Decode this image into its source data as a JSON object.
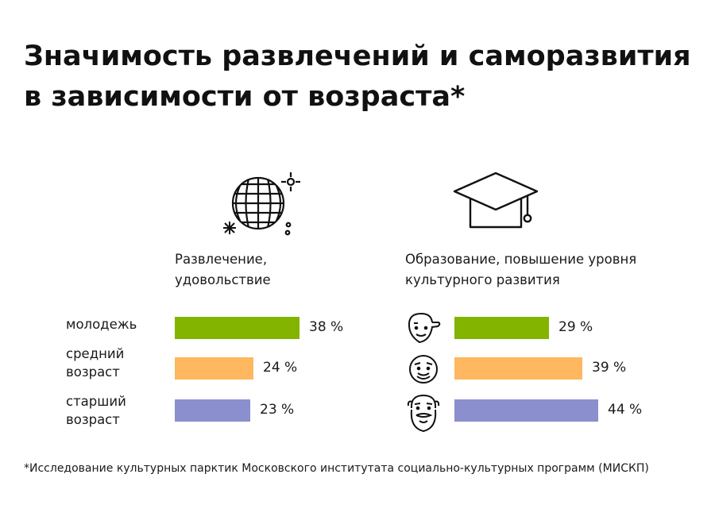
{
  "title": {
    "line1": "Значимость развлечений и саморазвития",
    "line2": "в зависимости от возраста*"
  },
  "footnote": "*Исследование культурных парктик Московского институтата социально-культурных программ (МИСКП)",
  "icons": {
    "left_panel": "disco-ball-icon",
    "right_panel": "graduation-cap-icon",
    "rows": [
      "young-face-cap-icon",
      "middle-aged-face-icon",
      "old-bearded-face-icon"
    ]
  },
  "colors": {
    "young": "#82b400",
    "middle": "#ffb760",
    "senior": "#8b8fce"
  },
  "chart_data": [
    {
      "type": "bar",
      "title_lines": [
        "Развлечение,",
        "удовольствие"
      ],
      "categories": [
        "молодежь",
        "средний возраст",
        "старший возраст"
      ],
      "category_lines": [
        [
          "молодежь"
        ],
        [
          "средний",
          "возраст"
        ],
        [
          "старший",
          "возраст"
        ]
      ],
      "values": [
        38,
        24,
        23
      ],
      "value_labels": [
        "38 %",
        "24 %",
        "23 %"
      ],
      "unit": "%",
      "orientation": "horizontal"
    },
    {
      "type": "bar",
      "title_lines": [
        "Образование, повышение уровня",
        "культурного развития"
      ],
      "categories": [
        "молодежь",
        "средний возраст",
        "старший возраст"
      ],
      "values": [
        29,
        39,
        44
      ],
      "value_labels": [
        "29 %",
        "39 %",
        "44 %"
      ],
      "unit": "%",
      "orientation": "horizontal"
    }
  ]
}
